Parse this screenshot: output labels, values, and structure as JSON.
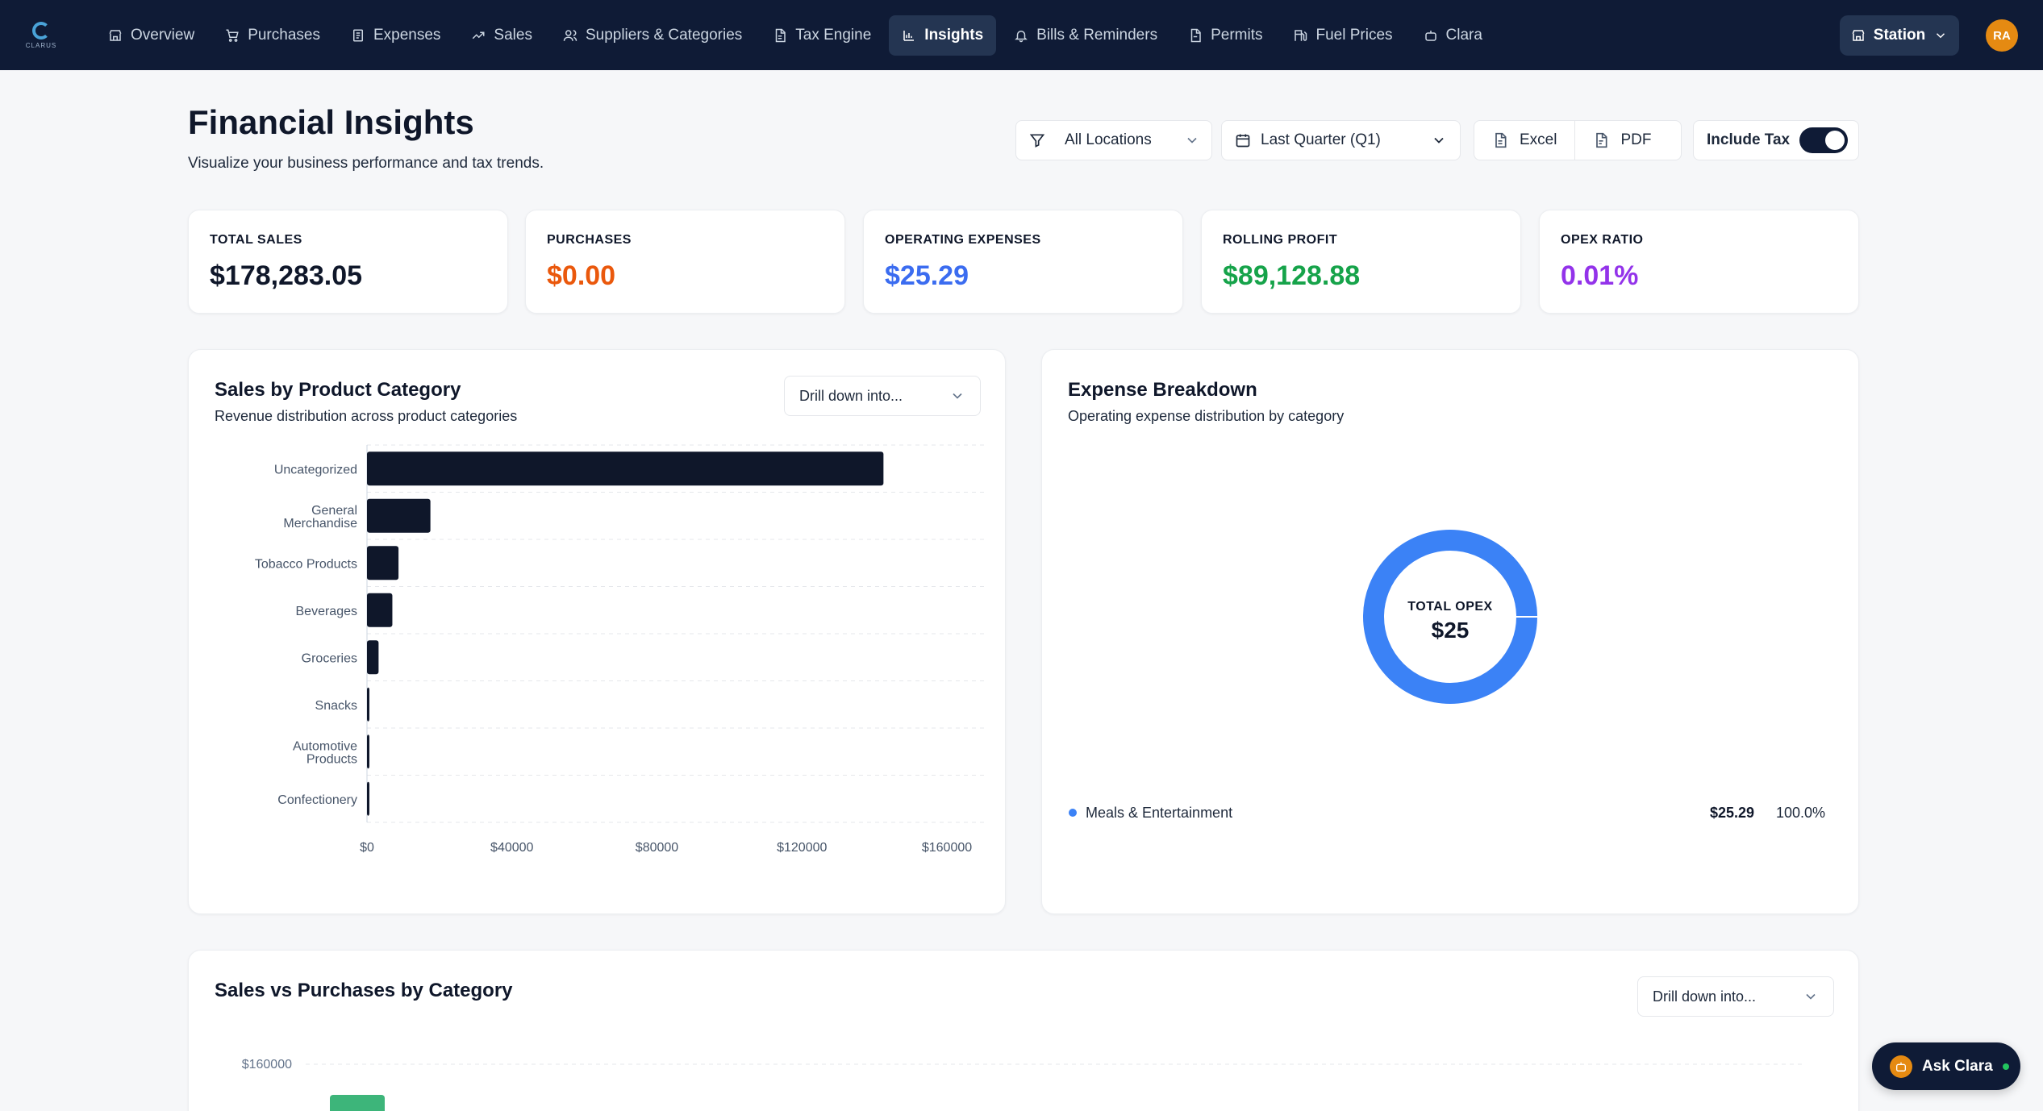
{
  "brand": {
    "logo_text": "CLARUS"
  },
  "nav": {
    "items": [
      {
        "label": "Overview",
        "icon": "store-icon"
      },
      {
        "label": "Purchases",
        "icon": "cart-icon"
      },
      {
        "label": "Expenses",
        "icon": "receipt-icon"
      },
      {
        "label": "Sales",
        "icon": "trending-up-icon"
      },
      {
        "label": "Suppliers & Categories",
        "icon": "users-icon"
      },
      {
        "label": "Tax Engine",
        "icon": "document-icon"
      },
      {
        "label": "Insights",
        "icon": "bar-chart-icon",
        "active": true
      },
      {
        "label": "Bills & Reminders",
        "icon": "bell-icon"
      },
      {
        "label": "Permits",
        "icon": "file-icon"
      },
      {
        "label": "Fuel Prices",
        "icon": "fuel-icon"
      },
      {
        "label": "Clara",
        "icon": "bot-icon"
      }
    ],
    "station_label": "Station",
    "avatar_initials": "RA"
  },
  "header": {
    "title": "Financial Insights",
    "subtitle": "Visualize your business performance and tax trends."
  },
  "filters": {
    "location": "All Locations",
    "period": "Last Quarter (Q1)",
    "excel_label": "Excel",
    "pdf_label": "PDF",
    "include_tax_label": "Include Tax",
    "include_tax_on": true
  },
  "kpis": [
    {
      "label": "TOTAL SALES",
      "value": "$178,283.05",
      "color": "#0f172a"
    },
    {
      "label": "PURCHASES",
      "value": "$0.00",
      "color": "#ea580c"
    },
    {
      "label": "OPERATING EXPENSES",
      "value": "$25.29",
      "color": "#3b6cf0"
    },
    {
      "label": "ROLLING PROFIT",
      "value": "$89,128.88",
      "color": "#16a34a"
    },
    {
      "label": "OPEX RATIO",
      "value": "0.01%",
      "color": "#9333ea"
    }
  ],
  "sales_card": {
    "title": "Sales by Product Category",
    "subtitle": "Revenue distribution across product categories",
    "drill_label": "Drill down into..."
  },
  "expense_card": {
    "title": "Expense Breakdown",
    "subtitle": "Operating expense distribution by category",
    "center_label": "TOTAL OPEX",
    "center_value": "$25",
    "legend": [
      {
        "name": "Meals & Entertainment",
        "amount": "$25.29",
        "percent": "100.0%",
        "color": "#3b82f6"
      }
    ]
  },
  "svp_card": {
    "title": "Sales vs Purchases by Category",
    "drill_label": "Drill down into...",
    "visible_tick": "$160000"
  },
  "ask_clara_label": "Ask Clara",
  "chart_data": [
    {
      "type": "bar",
      "orientation": "horizontal",
      "title": "Sales by Product Category",
      "categories": [
        [
          "Uncategorized"
        ],
        [
          "General",
          "Merchandise"
        ],
        [
          "Tobacco Products"
        ],
        [
          "Beverages"
        ],
        [
          "Groceries"
        ],
        [
          "Snacks"
        ],
        [
          "Automotive",
          "Products"
        ],
        [
          "Confectionery"
        ]
      ],
      "values": [
        142500,
        17500,
        8700,
        7000,
        3200,
        600,
        500,
        400
      ],
      "xlim": [
        0,
        160000
      ],
      "xticks": [
        "$0",
        "$40000",
        "$80000",
        "$120000",
        "$160000"
      ],
      "bar_color": "#0f172a",
      "grid": true
    },
    {
      "type": "pie",
      "variant": "donut",
      "title": "Expense Breakdown",
      "labels": [
        "Meals & Entertainment"
      ],
      "values": [
        25.29
      ],
      "colors": [
        "#3b82f6"
      ]
    }
  ]
}
